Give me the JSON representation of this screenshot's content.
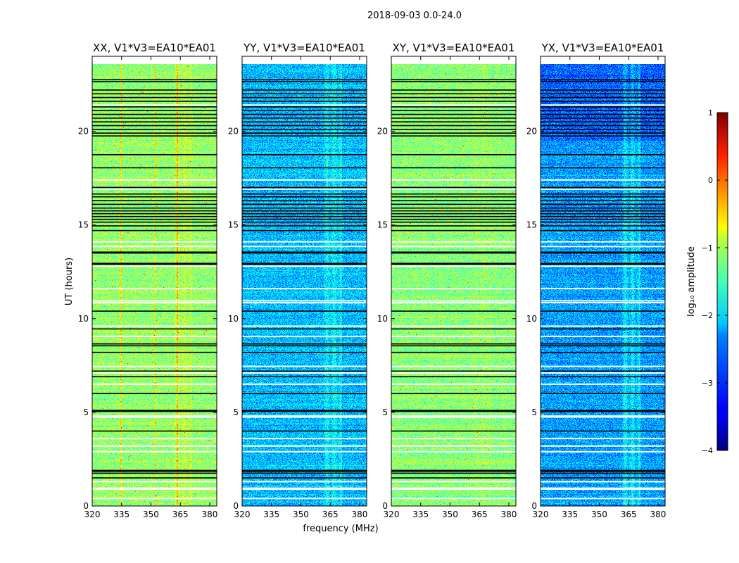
{
  "chart_data": {
    "type": "heatmap",
    "suptitle": "2018-09-03 0.0-24.0",
    "xlabel": "frequency (MHz)",
    "ylabel": "UT (hours)",
    "xlim": [
      320,
      383.6
    ],
    "ylim": [
      0,
      24
    ],
    "data_time_end": 23.6,
    "xticks": [
      320,
      335,
      350,
      365,
      380
    ],
    "yticks": [
      0,
      5,
      10,
      15,
      20
    ],
    "panels": [
      {
        "title": "XX, V1*V3=EA10*EA01",
        "base_log_amp": -1.4,
        "band_boost": 0.25,
        "rfi_channels_mhz": [
          334.6,
          352.2,
          363.4
        ]
      },
      {
        "title": "YY, V1*V3=EA10*EA01",
        "base_log_amp": -2.45,
        "band_boost": 0.35,
        "rfi_channels_mhz": []
      },
      {
        "title": "XY, V1*V3=EA10*EA01",
        "base_log_amp": -1.45,
        "band_boost": 0.1,
        "rfi_channels_mhz": []
      },
      {
        "title": "YX, V1*V3=EA10*EA01",
        "base_log_amp": -2.6,
        "band_boost": 0.45,
        "rfi_channels_mhz": []
      }
    ],
    "band_mhz": [
      361.5,
      371
    ],
    "flagged_rows_black_hours": [
      22.75,
      22.65,
      22.2,
      22.0,
      21.8,
      21.6,
      21.3,
      21.1,
      20.9,
      20.7,
      20.5,
      20.3,
      20.1,
      19.9,
      19.75,
      18.75,
      18.05,
      17.0,
      16.65,
      16.5,
      16.3,
      16.1,
      15.9,
      15.75,
      15.6,
      15.45,
      15.3,
      15.15,
      14.95,
      14.7,
      13.55,
      13.5,
      12.95,
      12.9,
      10.4,
      9.45,
      8.65,
      8.55,
      8.2,
      7.2,
      6.9,
      6.0,
      5.1,
      5.05,
      4.0,
      1.9,
      1.85,
      1.75,
      1.5
    ],
    "flagged_rows_white_hours": [
      21.4,
      17.4,
      16.9,
      14.1,
      13.85,
      12.8,
      11.6,
      10.95,
      10.85,
      9.6,
      9.05,
      7.45,
      7.1,
      6.5,
      4.8,
      4.75,
      3.6,
      3.2,
      2.9,
      1.3,
      0.95,
      0.9,
      0.4
    ],
    "colorbar": {
      "label": "log₁₀ amplitude",
      "range": [
        -4,
        1
      ],
      "ticks": [
        1,
        0,
        -1,
        -2,
        -3,
        -4
      ],
      "tick_labels": [
        "1",
        "0",
        "−1",
        "−2",
        "−3",
        "−4"
      ],
      "colormap": "jet"
    }
  }
}
